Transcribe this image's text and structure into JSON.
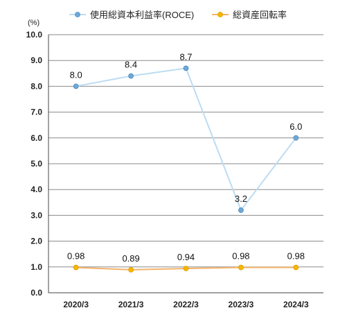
{
  "chart_data": {
    "type": "line",
    "categories": [
      "2020/3",
      "2021/3",
      "2022/3",
      "2023/3",
      "2024/3"
    ],
    "series": [
      {
        "name": "使用総資本利益率(ROCE)",
        "values": [
          8.0,
          8.4,
          8.7,
          3.2,
          6.0
        ],
        "labels": [
          "8.0",
          "8.4",
          "8.7",
          "3.2",
          "6.0"
        ],
        "color": "#bcdcf2",
        "marker_color": "#6fa8d6"
      },
      {
        "name": "総資産回転率",
        "values": [
          0.98,
          0.89,
          0.94,
          0.98,
          0.98
        ],
        "labels": [
          "0.98",
          "0.89",
          "0.94",
          "0.98",
          "0.98"
        ],
        "color": "#f5b36b",
        "marker_color": "#f5b800"
      }
    ],
    "unit_label": "(%)",
    "ylim": [
      0,
      10
    ],
    "yticks": [
      "0.0",
      "1.0",
      "2.0",
      "3.0",
      "4.0",
      "5.0",
      "6.0",
      "7.0",
      "8.0",
      "9.0",
      "10.0"
    ],
    "grid": true,
    "legend_position": "top"
  }
}
